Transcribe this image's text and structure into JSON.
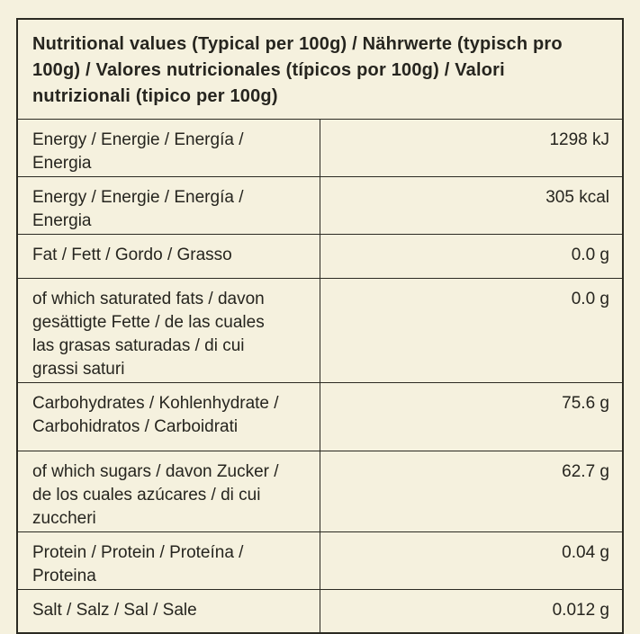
{
  "colors": {
    "background": "#f5f1de",
    "border": "#2b2a22",
    "text": "#26251f"
  },
  "table": {
    "header": "Nutritional values (Typical per 100g) / Nährwerte (typisch pro 100g) / Valores nutricionales (típicos por 100g) / Valori nutrizionali (tipico per 100g)",
    "rows": [
      {
        "label": "Energy / Energie / Energía / Energia",
        "value": "1298 kJ"
      },
      {
        "label": "Energy / Energie / Energía / Energia",
        "value": "305 kcal"
      },
      {
        "label": "Fat / Fett / Gordo / Grasso",
        "value": "0.0 g"
      },
      {
        "label": "of which saturated fats / davon gesättigte Fette / de las cuales las grasas saturadas / di cui grassi saturi",
        "value": "0.0 g"
      },
      {
        "label": "Carbohydrates / Kohlenhydrate / Carbohidratos / Carboidrati",
        "value": "75.6 g"
      },
      {
        "label": "of which sugars / davon Zucker / de los cuales azúcares / di cui zuccheri",
        "value": "62.7 g"
      },
      {
        "label": "Protein / Protein / Proteína / Proteina",
        "value": "0.04 g"
      },
      {
        "label": "Salt / Salz / Sal / Sale",
        "value": "0.012 g"
      }
    ]
  }
}
